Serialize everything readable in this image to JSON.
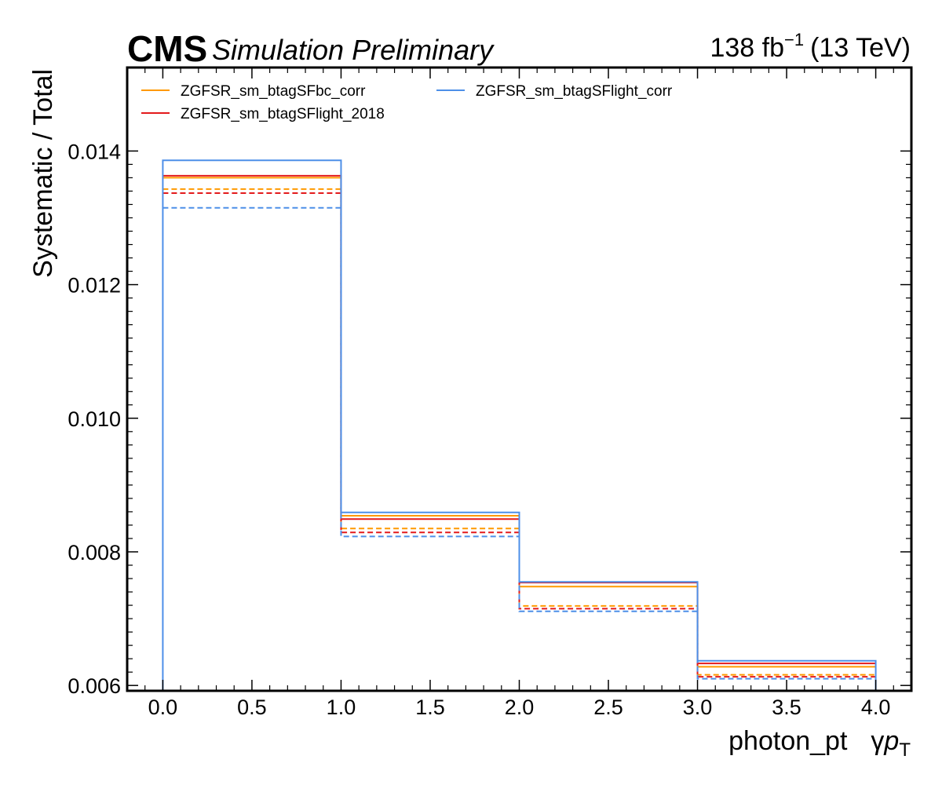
{
  "header": {
    "experiment": "CMS",
    "status": "Simulation Preliminary",
    "lumi_value": "138 fb",
    "lumi_exponent": "−1",
    "lumi_energy": "(13 TeV)"
  },
  "chart_data": {
    "type": "step",
    "ylabel": "Systematic / Total",
    "xlabel_main": "photon_pt",
    "xlabel_gamma": "γ",
    "xlabel_p": "p",
    "xlabel_sub": "T",
    "xlim": [
      -0.2,
      4.2
    ],
    "ylim": [
      0.00592,
      0.01525
    ],
    "x_ticks": [
      0.0,
      0.5,
      1.0,
      1.5,
      2.0,
      2.5,
      3.0,
      3.5,
      4.0
    ],
    "x_tick_labels": [
      "0.0",
      "0.5",
      "1.0",
      "1.5",
      "2.0",
      "2.5",
      "3.0",
      "3.5",
      "4.0"
    ],
    "y_ticks": [
      0.006,
      0.008,
      0.01,
      0.012,
      0.014
    ],
    "y_tick_labels": [
      "0.006",
      "0.008",
      "0.010",
      "0.012",
      "0.014"
    ],
    "bin_edges": [
      0,
      1,
      2,
      3,
      4
    ],
    "legend_position": "top-left",
    "legend_columns": 2,
    "series": [
      {
        "name": "ZGFSR_sm_btagSFbc_corr",
        "color": "#ff9900",
        "up": [
          0.0136,
          0.00854,
          0.00748,
          0.00628
        ],
        "down": [
          0.01343,
          0.00835,
          0.00719,
          0.00616
        ]
      },
      {
        "name": "ZGFSR_sm_btagSFlight_2018",
        "color": "#e31a1c",
        "up": [
          0.01363,
          0.00849,
          0.00754,
          0.00633
        ],
        "down": [
          0.01337,
          0.00829,
          0.00715,
          0.00613
        ]
      },
      {
        "name": "ZGFSR_sm_btagSFlight_corr",
        "color": "#4d8fe8",
        "up": [
          0.01386,
          0.00859,
          0.00755,
          0.00637
        ],
        "down": [
          0.01315,
          0.00823,
          0.00711,
          0.0061
        ]
      }
    ]
  }
}
